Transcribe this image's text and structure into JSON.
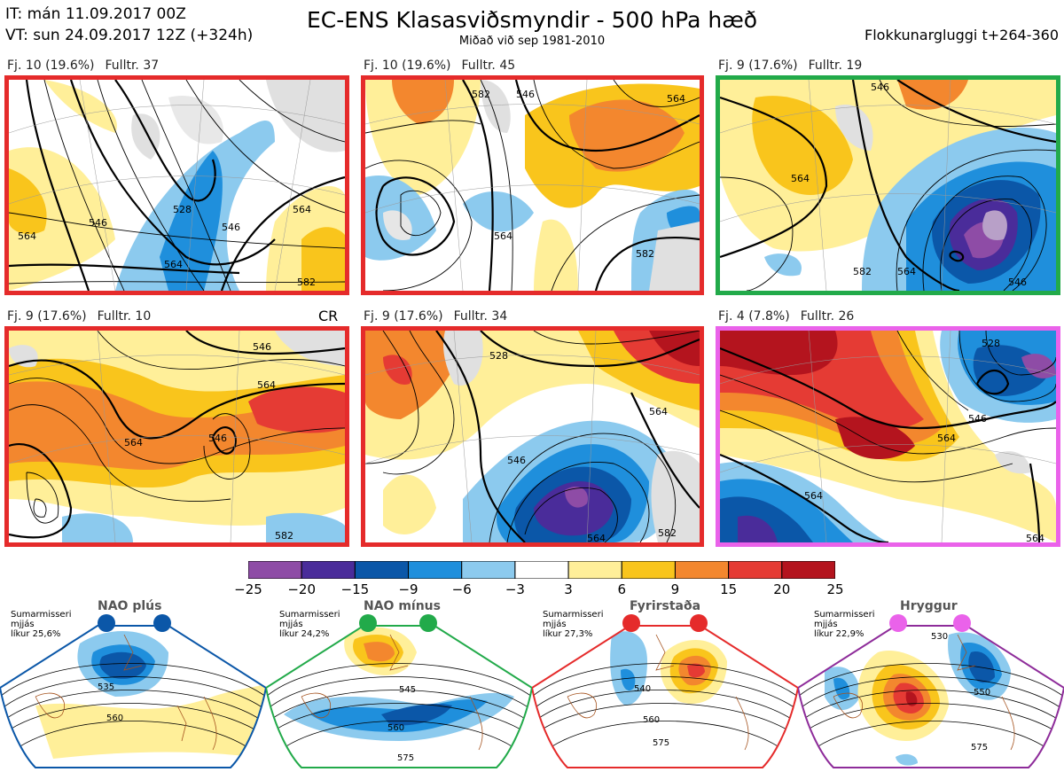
{
  "header": {
    "issued": "IT: mán 11.09.2017 00Z",
    "valid": "VT: sun 24.09.2017 12Z  (+324h)",
    "title": "EC-ENS Klasasviðsmyndir - 500 hPa hæð",
    "subtitle": "Miðað við sep 1981-2010",
    "window": "Flokkunargluggi t+264-360"
  },
  "panels": [
    {
      "count": "Fj. 10 (19.6%)",
      "rep": "Fulltr. 37",
      "border": "#e52b2b",
      "contours": [
        "546",
        "528",
        "546",
        "564",
        "564",
        "564",
        "582"
      ]
    },
    {
      "count": "Fj. 10 (19.6%)",
      "rep": "Fulltr. 45",
      "border": "#e52b2b",
      "contours": [
        "546",
        "564",
        "564",
        "582",
        "582"
      ]
    },
    {
      "count": "Fj. 9 (17.6%)",
      "rep": "Fulltr. 19",
      "border": "#22aa4a",
      "contours": [
        "564",
        "546",
        "582",
        "564",
        "546"
      ]
    },
    {
      "count": "Fj. 9 (17.6%)",
      "rep": "Fulltr. 10",
      "border": "#e52b2b",
      "tag": "CR",
      "contours": [
        "546",
        "564",
        "546",
        "564",
        "582"
      ]
    },
    {
      "count": "Fj. 9 (17.6%)",
      "rep": "Fulltr. 34",
      "border": "#e52b2b",
      "contours": [
        "528",
        "564",
        "546",
        "564",
        "582"
      ]
    },
    {
      "count": "Fj. 4 (7.8%)",
      "rep": "Fulltr. 26",
      "border": "#ea62ea",
      "contours": [
        "528",
        "564",
        "546",
        "564",
        "564"
      ]
    }
  ],
  "colorbar": {
    "ticks": [
      "−25",
      "−20",
      "−15",
      "−9",
      "−6",
      "−3",
      "3",
      "6",
      "9",
      "15",
      "20",
      "25"
    ],
    "colors": [
      "#8e4ca6",
      "#4a2c9a",
      "#0b57a8",
      "#1f8fdc",
      "#8ccaee",
      "#ffffff",
      "#ffef99",
      "#f9c51c",
      "#f3872e",
      "#e53b34",
      "#b4141e"
    ]
  },
  "regimes": [
    {
      "title": "NAO plús",
      "note": [
        "Sumarmisseri",
        "mjjás",
        "líkur 25,6%"
      ],
      "color": "#0b57a8",
      "contours": [
        "535",
        "560"
      ]
    },
    {
      "title": "NAO mínus",
      "note": [
        "Sumarmisseri",
        "mjjás",
        "líkur 24,2%"
      ],
      "color": "#22aa4a",
      "contours": [
        "545",
        "560",
        "575"
      ]
    },
    {
      "title": "Fyrirstaða",
      "note": [
        "Sumarmisseri",
        "mjjás",
        "líkur 27,3%"
      ],
      "color": "#e52b2b",
      "contours": [
        "540",
        "560",
        "575"
      ]
    },
    {
      "title": "Hryggur",
      "note": [
        "Sumarmisseri",
        "mjjás",
        "líkur 22,9%"
      ],
      "color": "#8e2c9a",
      "contours": [
        "530",
        "550",
        "575"
      ]
    }
  ]
}
